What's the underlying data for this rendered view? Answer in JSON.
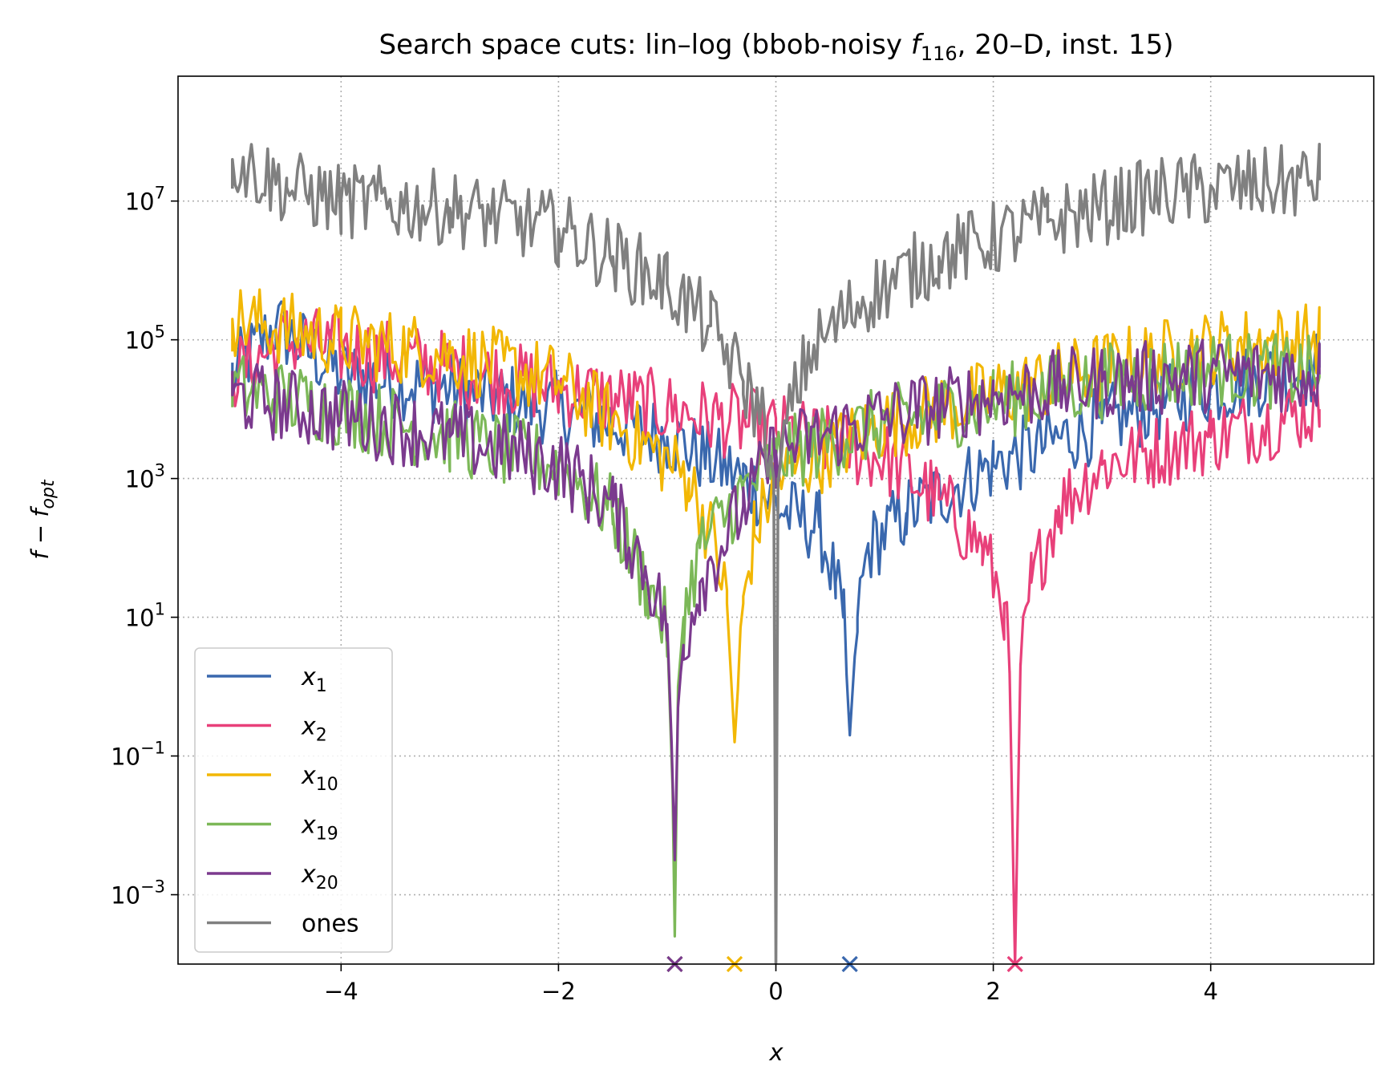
{
  "chart_data": {
    "type": "line",
    "title": "Search space cuts: lin–log (bbob-noisy f116, 20–D, inst. 15)",
    "title_parts": {
      "prefix": "Search space cuts: lin–log (bbob-noisy ",
      "f": "f",
      "sub": "116",
      "suffix": ", 20–D, inst. 15)"
    },
    "xlabel": "x",
    "ylabel": "f − f_opt",
    "ylabel_parts": {
      "main": "f − f",
      "sub": "opt"
    },
    "xlim": [
      -5.5,
      5.5
    ],
    "ylim_log10": [
      -4.0,
      8.8
    ],
    "y_scale": "log",
    "grid": true,
    "legend_position": "lower-left",
    "x_ticks": [
      -4,
      -2,
      0,
      2,
      4
    ],
    "x_tick_labels": [
      "−4",
      "−2",
      "0",
      "2",
      "4"
    ],
    "y_ticks_log10": [
      7,
      5,
      3,
      1,
      -1,
      -3
    ],
    "y_tick_labels": [
      {
        "base": "10",
        "exp": "7"
      },
      {
        "base": "10",
        "exp": "5"
      },
      {
        "base": "10",
        "exp": "3"
      },
      {
        "base": "10",
        "exp": "1"
      },
      {
        "base": "10",
        "exp": "−1"
      },
      {
        "base": "10",
        "exp": "−3"
      }
    ],
    "x_range_of_cuts": [
      -5,
      5
    ],
    "series": [
      {
        "name": "x1",
        "label_main": "x",
        "label_sub": "1",
        "color": "#3a68ae",
        "optimum_x": 0.68,
        "anchors": [
          [
            -5.0,
            4.5
          ],
          [
            -4.6,
            5.2
          ],
          [
            -4.0,
            4.5
          ],
          [
            -3.0,
            4.3
          ],
          [
            -2.0,
            4.0
          ],
          [
            -1.0,
            3.6
          ],
          [
            -0.3,
            3.0
          ],
          [
            0.1,
            2.5
          ],
          [
            0.4,
            2.3
          ],
          [
            0.55,
            1.5
          ],
          [
            0.62,
            1.0
          ],
          [
            0.68,
            -0.7
          ],
          [
            0.75,
            1.0
          ],
          [
            0.85,
            2.0
          ],
          [
            1.2,
            2.5
          ],
          [
            2.0,
            3.2
          ],
          [
            3.0,
            3.8
          ],
          [
            4.0,
            4.3
          ],
          [
            5.0,
            4.6
          ]
        ]
      },
      {
        "name": "x2",
        "label_main": "x",
        "label_sub": "2",
        "color": "#e8407a",
        "optimum_x": 2.2,
        "anchors": [
          [
            -5.0,
            4.5
          ],
          [
            -4.5,
            5.0
          ],
          [
            -3.0,
            4.6
          ],
          [
            -2.0,
            4.3
          ],
          [
            -1.0,
            4.0
          ],
          [
            0.0,
            3.7
          ],
          [
            1.0,
            3.3
          ],
          [
            1.5,
            2.7
          ],
          [
            1.9,
            2.0
          ],
          [
            2.1,
            1.2
          ],
          [
            2.15,
            0.2
          ],
          [
            2.2,
            -4.0
          ],
          [
            2.25,
            0.3
          ],
          [
            2.35,
            1.5
          ],
          [
            2.6,
            2.6
          ],
          [
            3.0,
            3.2
          ],
          [
            4.0,
            3.6
          ],
          [
            5.0,
            4.0
          ]
        ]
      },
      {
        "name": "x10",
        "label_main": "x",
        "label_sub": "10",
        "color": "#f2b705",
        "optimum_x": -0.38,
        "anchors": [
          [
            -5.0,
            5.3
          ],
          [
            -4.0,
            5.0
          ],
          [
            -3.0,
            4.8
          ],
          [
            -2.0,
            4.4
          ],
          [
            -1.2,
            3.5
          ],
          [
            -0.8,
            3.0
          ],
          [
            -0.55,
            2.0
          ],
          [
            -0.45,
            1.2
          ],
          [
            -0.38,
            -0.8
          ],
          [
            -0.3,
            1.2
          ],
          [
            -0.2,
            2.2
          ],
          [
            0.0,
            3.0
          ],
          [
            1.0,
            3.8
          ],
          [
            2.0,
            4.2
          ],
          [
            3.0,
            4.6
          ],
          [
            4.0,
            4.9
          ],
          [
            5.0,
            5.0
          ]
        ]
      },
      {
        "name": "x19",
        "label_main": "x",
        "label_sub": "19",
        "color": "#7cb858",
        "optimum_x": -0.93,
        "anchors": [
          [
            -5.0,
            4.3
          ],
          [
            -4.0,
            4.0
          ],
          [
            -3.0,
            3.6
          ],
          [
            -2.0,
            3.2
          ],
          [
            -1.5,
            2.5
          ],
          [
            -1.2,
            1.5
          ],
          [
            -1.0,
            0.8
          ],
          [
            -0.95,
            -1.5
          ],
          [
            -0.93,
            -3.6
          ],
          [
            -0.9,
            0.0
          ],
          [
            -0.85,
            1.0
          ],
          [
            -0.7,
            2.0
          ],
          [
            -0.3,
            2.8
          ],
          [
            0.0,
            3.3
          ],
          [
            1.0,
            3.8
          ],
          [
            2.0,
            4.1
          ],
          [
            3.0,
            4.4
          ],
          [
            4.0,
            4.6
          ],
          [
            5.0,
            4.5
          ]
        ]
      },
      {
        "name": "x20",
        "label_main": "x",
        "label_sub": "20",
        "color": "#7b3a8e",
        "optimum_x": -0.93,
        "anchors": [
          [
            -5.0,
            4.2
          ],
          [
            -4.0,
            3.9
          ],
          [
            -3.0,
            3.6
          ],
          [
            -2.0,
            3.2
          ],
          [
            -1.5,
            2.6
          ],
          [
            -1.2,
            1.7
          ],
          [
            -1.0,
            0.9
          ],
          [
            -0.96,
            -0.8
          ],
          [
            -0.93,
            -2.5
          ],
          [
            -0.9,
            -0.3
          ],
          [
            -0.85,
            0.6
          ],
          [
            -0.7,
            1.5
          ],
          [
            -0.3,
            2.6
          ],
          [
            0.0,
            3.4
          ],
          [
            1.0,
            3.9
          ],
          [
            2.0,
            4.2
          ],
          [
            3.0,
            4.4
          ],
          [
            4.0,
            4.5
          ],
          [
            5.0,
            4.5
          ]
        ]
      },
      {
        "name": "ones",
        "label_main": "ones",
        "label_sub": "",
        "color": "#808080",
        "optimum_x": 0.0,
        "anchors": [
          [
            -5.0,
            7.6
          ],
          [
            -4.5,
            7.2
          ],
          [
            -4.0,
            7.0
          ],
          [
            -3.0,
            6.9
          ],
          [
            -2.0,
            6.6
          ],
          [
            -1.5,
            6.2
          ],
          [
            -1.0,
            5.8
          ],
          [
            -0.6,
            5.2
          ],
          [
            -0.3,
            4.4
          ],
          [
            -0.1,
            3.8
          ],
          [
            -0.02,
            3.0
          ],
          [
            0.0,
            -4.0
          ],
          [
            0.02,
            3.0
          ],
          [
            0.1,
            3.8
          ],
          [
            0.3,
            4.8
          ],
          [
            0.8,
            5.6
          ],
          [
            1.5,
            6.2
          ],
          [
            2.5,
            6.7
          ],
          [
            3.5,
            7.1
          ],
          [
            5.0,
            7.3
          ]
        ]
      }
    ]
  }
}
